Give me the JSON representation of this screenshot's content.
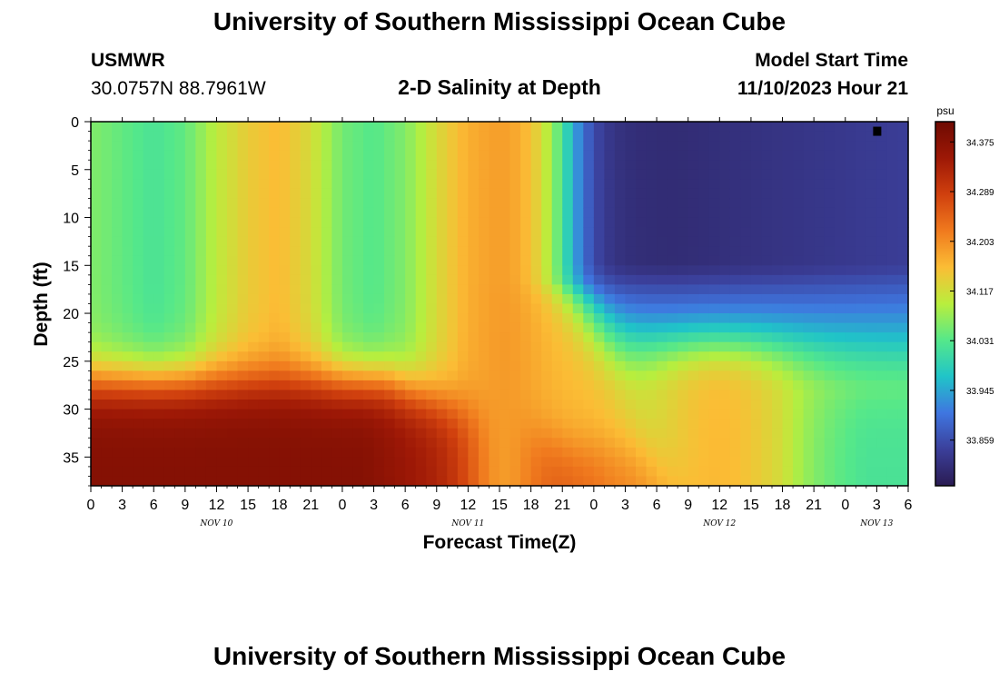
{
  "header": {
    "title": "University of Southern Mississippi Ocean Cube",
    "station": "USMWR",
    "coords": "30.0757N  88.7961W",
    "subtitle": "2-D Salinity at Depth",
    "model_label": "Model Start Time",
    "model_time": "11/10/2023 Hour 21"
  },
  "footer": {
    "title": "University of Southern Mississippi Ocean Cube"
  },
  "chart_data": {
    "type": "heatmap",
    "title": "2-D Salinity at Depth",
    "xlabel": "Forecast Time(Z)",
    "ylabel": "Depth (ft)",
    "x_range_hours": [
      0,
      78
    ],
    "y_range_ft": [
      0,
      38
    ],
    "x_ticks": [
      {
        "h": 0,
        "label": "0"
      },
      {
        "h": 3,
        "label": "3"
      },
      {
        "h": 6,
        "label": "6"
      },
      {
        "h": 9,
        "label": "9"
      },
      {
        "h": 12,
        "label": "12"
      },
      {
        "h": 15,
        "label": "15"
      },
      {
        "h": 18,
        "label": "18"
      },
      {
        "h": 21,
        "label": "21"
      },
      {
        "h": 24,
        "label": "0"
      },
      {
        "h": 27,
        "label": "3"
      },
      {
        "h": 30,
        "label": "6"
      },
      {
        "h": 33,
        "label": "9"
      },
      {
        "h": 36,
        "label": "12"
      },
      {
        "h": 39,
        "label": "15"
      },
      {
        "h": 42,
        "label": "18"
      },
      {
        "h": 45,
        "label": "21"
      },
      {
        "h": 48,
        "label": "0"
      },
      {
        "h": 51,
        "label": "3"
      },
      {
        "h": 54,
        "label": "6"
      },
      {
        "h": 57,
        "label": "9"
      },
      {
        "h": 60,
        "label": "12"
      },
      {
        "h": 63,
        "label": "15"
      },
      {
        "h": 66,
        "label": "18"
      },
      {
        "h": 69,
        "label": "21"
      },
      {
        "h": 72,
        "label": "0"
      },
      {
        "h": 75,
        "label": "3"
      },
      {
        "h": 78,
        "label": "6"
      }
    ],
    "date_labels": [
      {
        "h": 12,
        "label": "NOV 10"
      },
      {
        "h": 36,
        "label": "NOV 11"
      },
      {
        "h": 60,
        "label": "NOV 12"
      },
      {
        "h": 75,
        "label": "NOV 13"
      }
    ],
    "y_ticks": [
      0,
      5,
      10,
      15,
      20,
      25,
      30,
      35
    ],
    "colorbar": {
      "unit": "psu",
      "min": 33.78,
      "max": 34.41,
      "tick_values": [
        34.375,
        34.289,
        34.203,
        34.117,
        34.031,
        33.945,
        33.859
      ],
      "tick_labels": [
        "34.375",
        "34.289",
        "34.203",
        "34.117",
        "34.031",
        "33.945",
        "33.859"
      ],
      "colors": [
        "#2a1b52",
        "#3b3f9a",
        "#3f76e0",
        "#20c4c8",
        "#55e88a",
        "#b9ee3d",
        "#fbbd35",
        "#f07a1e",
        "#d0400e",
        "#9d1806",
        "#6e0a02"
      ]
    },
    "salinity_summary": [
      {
        "hours": "0-24",
        "depth_ft": "0-25",
        "psu": "34.02-34.15 (green to orange bands)"
      },
      {
        "hours": "0-36",
        "depth_ft": "30-38",
        "psu": "34.30-34.38 (dark red)"
      },
      {
        "hours": "36-42",
        "depth_ft": "0-38",
        "psu": "34.15-34.22 (orange column)"
      },
      {
        "hours": "46-78",
        "depth_ft": "0-15",
        "psu": "33.80-33.88 (dark blue, fresher)"
      },
      {
        "hours": "55-72",
        "depth_ft": "17-25",
        "psu": "33.95-34.03"
      },
      {
        "hours": "66-78",
        "depth_ft": "30-38",
        "psu": "33.95-34.05"
      }
    ],
    "marker": {
      "h": 75,
      "depth": 1,
      "color": "#000000"
    }
  }
}
